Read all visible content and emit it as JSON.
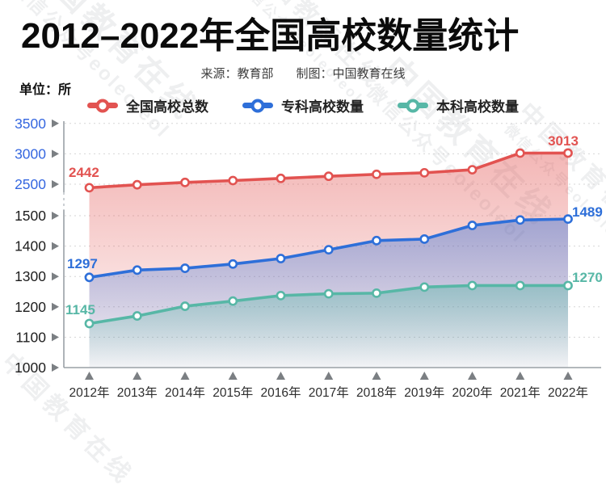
{
  "title": "2012–2022年全国高校数量统计",
  "subtitle": {
    "source": "来源：教育部",
    "maker": "制图：中国教育在线"
  },
  "unit_label": "单位：所",
  "watermark": {
    "line1": "中国教育在线",
    "line2": "微信公众号eoleoleol"
  },
  "colors": {
    "total": "#e25351",
    "vocational": "#2e6fd9",
    "undergraduate": "#57b7a6",
    "upper_tick_label": "#3567e0",
    "lower_tick_label": "#1d1d1d",
    "axis": "#9aa0a6",
    "gridline": "#d5d5d5",
    "tick_triangle": "#7b7f83"
  },
  "chart_data": {
    "type": "line",
    "title": "2012–2022年全国高校数量统计",
    "unit": "所",
    "grid": true,
    "legend_position": "top",
    "broken_y_axis": true,
    "x_categories": [
      "2012年",
      "2013年",
      "2014年",
      "2015年",
      "2016年",
      "2017年",
      "2018年",
      "2019年",
      "2020年",
      "2021年",
      "2022年"
    ],
    "y_axis": {
      "upper_ticks": [
        3500,
        3000,
        2500
      ],
      "lower_ticks": [
        1500,
        1400,
        1300,
        1200,
        1100,
        1000
      ],
      "upper_range": [
        2500,
        3500
      ],
      "lower_range": [
        1000,
        1500
      ]
    },
    "series": [
      {
        "name": "全国高校总数",
        "color": "#e25351",
        "values": [
          2442,
          2491,
          2529,
          2560,
          2596,
          2631,
          2663,
          2688,
          2738,
          3012,
          3013
        ],
        "first_point_label": "2442",
        "last_point_label": "3013"
      },
      {
        "name": "专科高校数量",
        "color": "#2e6fd9",
        "values": [
          1297,
          1321,
          1327,
          1341,
          1359,
          1388,
          1418,
          1423,
          1468,
          1486,
          1489
        ],
        "first_point_label": "1297",
        "last_point_label": "1489"
      },
      {
        "name": "本科高校数量",
        "color": "#57b7a6",
        "values": [
          1145,
          1170,
          1202,
          1219,
          1237,
          1243,
          1245,
          1265,
          1270,
          1270,
          1270
        ],
        "first_point_label": "1145",
        "last_point_label": "1270"
      }
    ]
  }
}
